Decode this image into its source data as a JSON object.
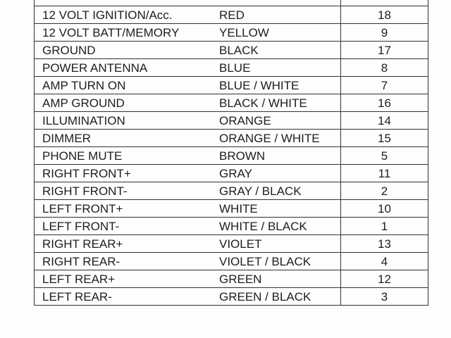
{
  "rows": [
    {
      "function": "",
      "color": "",
      "pin": ""
    },
    {
      "function": "12 VOLT IGNITION/Acc.",
      "color": "RED",
      "pin": "18"
    },
    {
      "function": "12 VOLT BATT/MEMORY",
      "color": "YELLOW",
      "pin": "9"
    },
    {
      "function": "GROUND",
      "color": "BLACK",
      "pin": "17"
    },
    {
      "function": "POWER ANTENNA",
      "color": "BLUE",
      "pin": "8"
    },
    {
      "function": "AMP TURN ON",
      "color": "BLUE / WHITE",
      "pin": "7"
    },
    {
      "function": "AMP GROUND",
      "color": "BLACK / WHITE",
      "pin": "16"
    },
    {
      "function": "ILLUMINATION",
      "color": "ORANGE",
      "pin": "14"
    },
    {
      "function": "DIMMER",
      "color": "ORANGE / WHITE",
      "pin": "15"
    },
    {
      "function": "PHONE MUTE",
      "color": "BROWN",
      "pin": "5"
    },
    {
      "function": "RIGHT FRONT+",
      "color": "GRAY",
      "pin": "11"
    },
    {
      "function": "RIGHT FRONT-",
      "color": "GRAY / BLACK",
      "pin": "2"
    },
    {
      "function": "LEFT FRONT+",
      "color": "WHITE",
      "pin": "10"
    },
    {
      "function": "LEFT FRONT-",
      "color": "WHITE / BLACK",
      "pin": "1"
    },
    {
      "function": "RIGHT REAR+",
      "color": "VIOLET",
      "pin": "13"
    },
    {
      "function": "RIGHT REAR-",
      "color": "VIOLET / BLACK",
      "pin": "4"
    },
    {
      "function": "LEFT REAR+",
      "color": "GREEN",
      "pin": "12"
    },
    {
      "function": "LEFT REAR-",
      "color": "GREEN / BLACK",
      "pin": "3"
    }
  ]
}
